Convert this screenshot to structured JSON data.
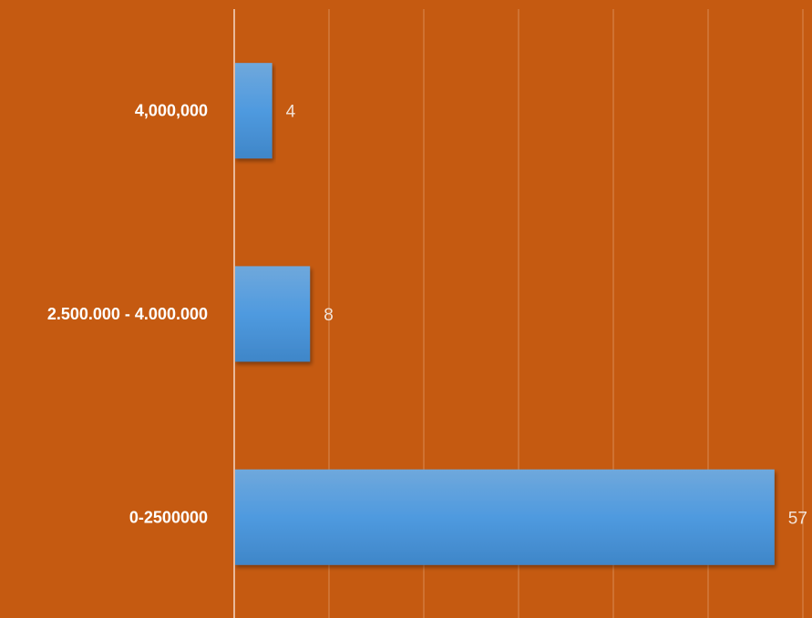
{
  "chart_data": {
    "type": "bar",
    "orientation": "horizontal",
    "categories": [
      "4,000,000",
      "2.500.000 - 4.000.000",
      "0-2500000"
    ],
    "values": [
      4,
      8,
      57
    ],
    "data_labels": [
      "4",
      "8",
      "57"
    ],
    "title": "",
    "xlabel": "",
    "ylabel": "",
    "xlim": [
      0,
      60
    ],
    "gridlines": true,
    "legend": false,
    "colors": {
      "background": "#C55A11",
      "bar_top": "#6FA8DC",
      "bar_mid": "#4F9ADF",
      "bar_bottom": "#3F86C8",
      "gridline": "#D98A52",
      "axis": "#E9B99A",
      "category_text": "#FFFFFF",
      "value_text": "#F2E3D8"
    }
  }
}
